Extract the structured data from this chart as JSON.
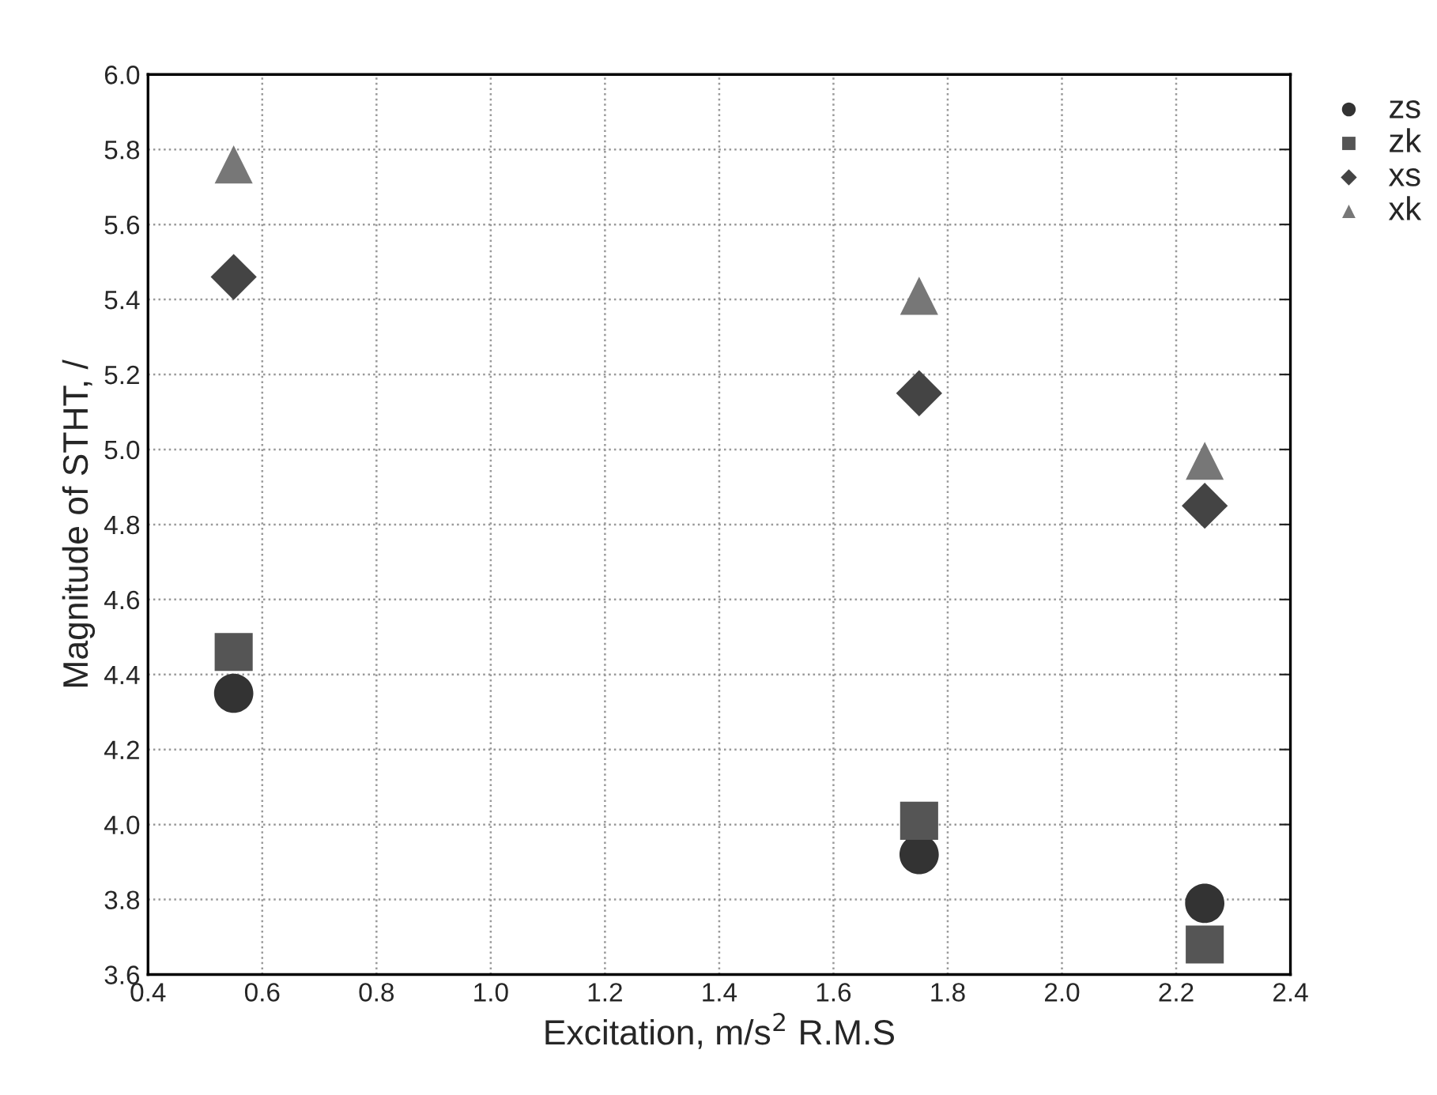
{
  "chart_data": {
    "type": "scatter",
    "xlabel": "Excitation, m/s$^{2}$ R.M.S",
    "ylabel": "Magnitude of STHT, /",
    "x": [
      0.55,
      1.75,
      2.25
    ],
    "series": [
      {
        "name": "zs",
        "color": "#333333",
        "marker": "circle",
        "values": [
          4.35,
          3.92,
          3.79
        ]
      },
      {
        "name": "zk",
        "color": "#555555",
        "marker": "square",
        "values": [
          4.46,
          4.01,
          3.68
        ]
      },
      {
        "name": "xs",
        "color": "#444444",
        "marker": "diamond",
        "values": [
          5.46,
          5.15,
          4.85
        ]
      },
      {
        "name": "xk",
        "color": "#777777",
        "marker": "triangle",
        "values": [
          5.76,
          5.41,
          4.97
        ]
      }
    ],
    "xlim": [
      0.4,
      2.4
    ],
    "xticks": [
      {
        "value": 0.4,
        "label": "0.4"
      },
      {
        "value": 0.6,
        "label": "0.6"
      },
      {
        "value": 0.8,
        "label": "0.8"
      },
      {
        "value": 1.0,
        "label": "1.0"
      },
      {
        "value": 1.2,
        "label": "1.2"
      },
      {
        "value": 1.4,
        "label": "1.4"
      },
      {
        "value": 1.6,
        "label": "1.6"
      },
      {
        "value": 1.8,
        "label": "1.8"
      },
      {
        "value": 2.0,
        "label": "2.0"
      },
      {
        "value": 2.2,
        "label": "2.2"
      },
      {
        "value": 2.4,
        "label": "2.4"
      }
    ],
    "ylim": [
      3.6,
      6.0
    ],
    "yticks": [
      {
        "value": 3.6,
        "label": "3.6"
      },
      {
        "value": 3.8,
        "label": "3.8"
      },
      {
        "value": 4.0,
        "label": "4.0"
      },
      {
        "value": 4.2,
        "label": "4.2"
      },
      {
        "value": 4.4,
        "label": "4.4"
      },
      {
        "value": 4.6,
        "label": "4.6"
      },
      {
        "value": 4.8,
        "label": "4.8"
      },
      {
        "value": 5.0,
        "label": "5.0"
      },
      {
        "value": 5.2,
        "label": "5.2"
      },
      {
        "value": 5.4,
        "label": "5.4"
      },
      {
        "value": 5.6,
        "label": "5.6"
      },
      {
        "value": 5.8,
        "label": "5.8"
      },
      {
        "value": 6.0,
        "label": "6.0"
      }
    ],
    "grid": true,
    "legend": "top right"
  }
}
